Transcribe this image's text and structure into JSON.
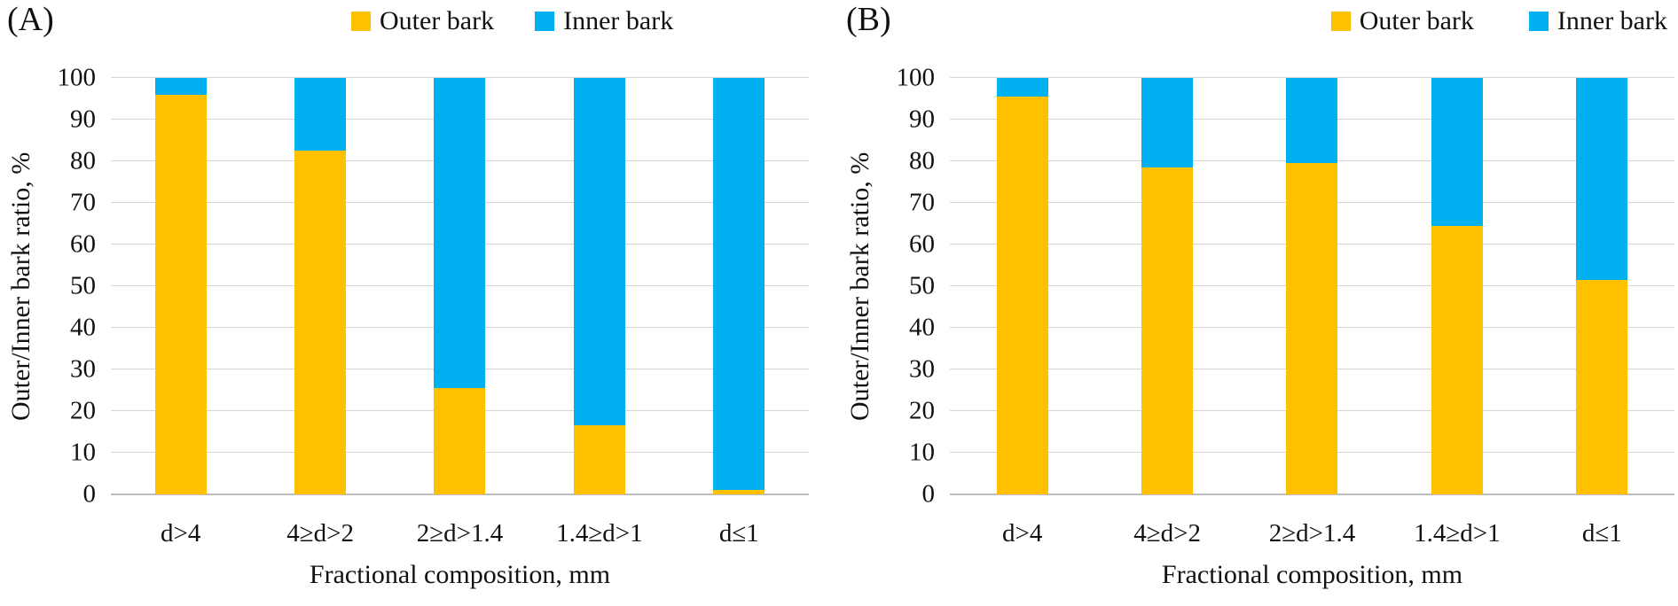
{
  "colors": {
    "outer_bark": "#FFC000",
    "inner_bark": "#00B0F0",
    "gridline": "#D6D6D6",
    "axis_line": "#BDBDBD",
    "text": "#111111"
  },
  "chart_data": [
    {
      "type": "bar",
      "stacked": true,
      "panel_label": "(A)",
      "categories": [
        "d>4",
        "4≥d>2",
        "2≥d>1.4",
        "1.4≥d>1",
        "d≤1"
      ],
      "series": [
        {
          "name": "Outer bark",
          "color": "#FFC000",
          "values": [
            96,
            82.5,
            25.5,
            16.5,
            1
          ]
        },
        {
          "name": "Inner bark",
          "color": "#00B0F0",
          "values": [
            4,
            17.5,
            74.5,
            83.5,
            99
          ]
        }
      ],
      "xlabel": "Fractional composition, mm",
      "ylabel": "Outer/Inner bark ratio, %",
      "ylim": [
        0,
        100
      ],
      "yticks": [
        0,
        10,
        20,
        30,
        40,
        50,
        60,
        70,
        80,
        90,
        100
      ],
      "grid": true,
      "legend_position": "top"
    },
    {
      "type": "bar",
      "stacked": true,
      "panel_label": "(B)",
      "categories": [
        "d>4",
        "4≥d>2",
        "2≥d>1.4",
        "1.4≥d>1",
        "d≤1"
      ],
      "series": [
        {
          "name": "Outer bark",
          "color": "#FFC000",
          "values": [
            95.5,
            78.5,
            79.5,
            64.5,
            51.5
          ]
        },
        {
          "name": "Inner bark",
          "color": "#00B0F0",
          "values": [
            4.5,
            21.5,
            20.5,
            35.5,
            48.5
          ]
        }
      ],
      "xlabel": "Fractional composition, mm",
      "ylabel": "Outer/Inner bark ratio, %",
      "ylim": [
        0,
        100
      ],
      "yticks": [
        0,
        10,
        20,
        30,
        40,
        50,
        60,
        70,
        80,
        90,
        100
      ],
      "grid": true,
      "legend_position": "top"
    }
  ]
}
